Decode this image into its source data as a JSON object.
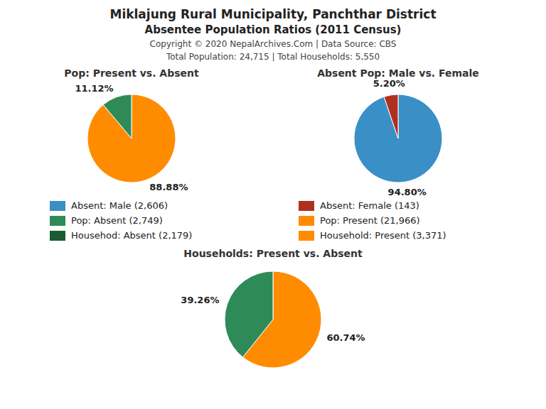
{
  "title": "Miklajung Rural Municipality, Panchthar District",
  "subtitle": "Absentee Population Ratios (2011 Census)",
  "annotations": [
    "Copyright © 2020 NepalArchives.Com | Data Source: CBS",
    "Total Population: 24,715 | Total Households: 5,550"
  ],
  "legend_entries": [
    {
      "label": "Absent: Male (2,606)",
      "color": "#3A8FC7"
    },
    {
      "label": "Absent: Female (143)",
      "color": "#B03020"
    },
    {
      "label": "Pop: Absent (2,749)",
      "color": "#2E8B57"
    },
    {
      "label": "Pop: Present (21,966)",
      "color": "#FF8C00"
    },
    {
      "label": "Househod: Absent (2,179)",
      "color": "#1A5C33"
    },
    {
      "label": "Household: Present (3,371)",
      "color": "#FF8C00"
    }
  ],
  "chart_data": [
    {
      "type": "pie",
      "title": "Pop: Present vs. Absent",
      "values": [
        88.88,
        11.12
      ],
      "value_labels": [
        "88.88%",
        "11.12%"
      ],
      "colors": [
        "#FF8C00",
        "#2E8B57"
      ],
      "data_labels": true
    },
    {
      "type": "pie",
      "title": "Absent Pop: Male vs. Female",
      "values": [
        94.8,
        5.2
      ],
      "value_labels": [
        "94.80%",
        "5.20%"
      ],
      "colors": [
        "#3A8FC7",
        "#B03020"
      ],
      "data_labels": true
    },
    {
      "type": "pie",
      "title": "Households: Present vs. Absent",
      "values": [
        60.74,
        39.26
      ],
      "value_labels": [
        "60.74%",
        "39.26%"
      ],
      "colors": [
        "#FF8C00",
        "#2E8B57"
      ],
      "data_labels": true
    }
  ]
}
